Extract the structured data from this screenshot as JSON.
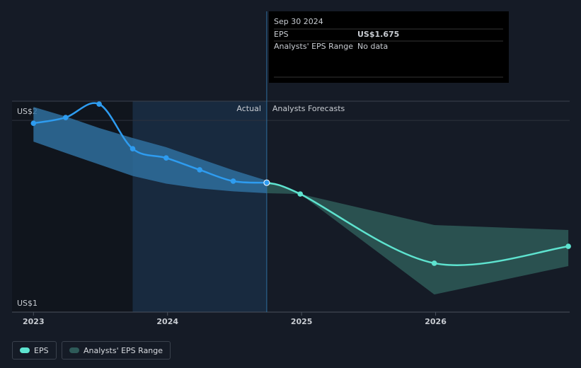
{
  "chart_data": {
    "type": "line",
    "x": [
      2023,
      2023.24,
      2023.49,
      2023.74,
      2023.99,
      2024.24,
      2024.49,
      2024.74,
      2024.99,
      2025.99,
      2026.99
    ],
    "xlim": [
      2022.84,
      2027
    ],
    "xticks": [
      2023,
      2024,
      2025,
      2026
    ],
    "ylim": [
      1,
      2.1
    ],
    "yticks": [
      {
        "value": 1,
        "label": "US$1"
      },
      {
        "value": 2,
        "label": "US$2"
      }
    ],
    "series": [
      {
        "name": "EPS",
        "color": "#2e9cf0",
        "forecast_color": "#5ee3cf",
        "values": [
          1.985,
          2.015,
          2.085,
          1.852,
          1.804,
          1.742,
          1.683,
          1.675,
          1.616,
          1.255,
          1.343
        ]
      }
    ],
    "range": {
      "name": "Analysts' EPS Range",
      "color": "#2f6f9e",
      "forecast_color": "#2e5a58",
      "low": [
        1.889,
        1.83,
        1.77,
        1.71,
        1.67,
        1.645,
        1.63,
        1.62,
        1.616,
        1.092,
        1.24
      ],
      "high": [
        2.07,
        2.02,
        1.96,
        1.908,
        1.86,
        1.8,
        1.74,
        1.686,
        1.616,
        1.454,
        1.428
      ]
    },
    "forecast_start": 2024.74,
    "annotations": {
      "actual": "Actual",
      "forecast": "Analysts Forecasts"
    },
    "tooltip": {
      "date": "Sep 30 2024",
      "eps_value": 1.675,
      "eps_label": "US$1.675",
      "range_text": "No data"
    }
  }
}
